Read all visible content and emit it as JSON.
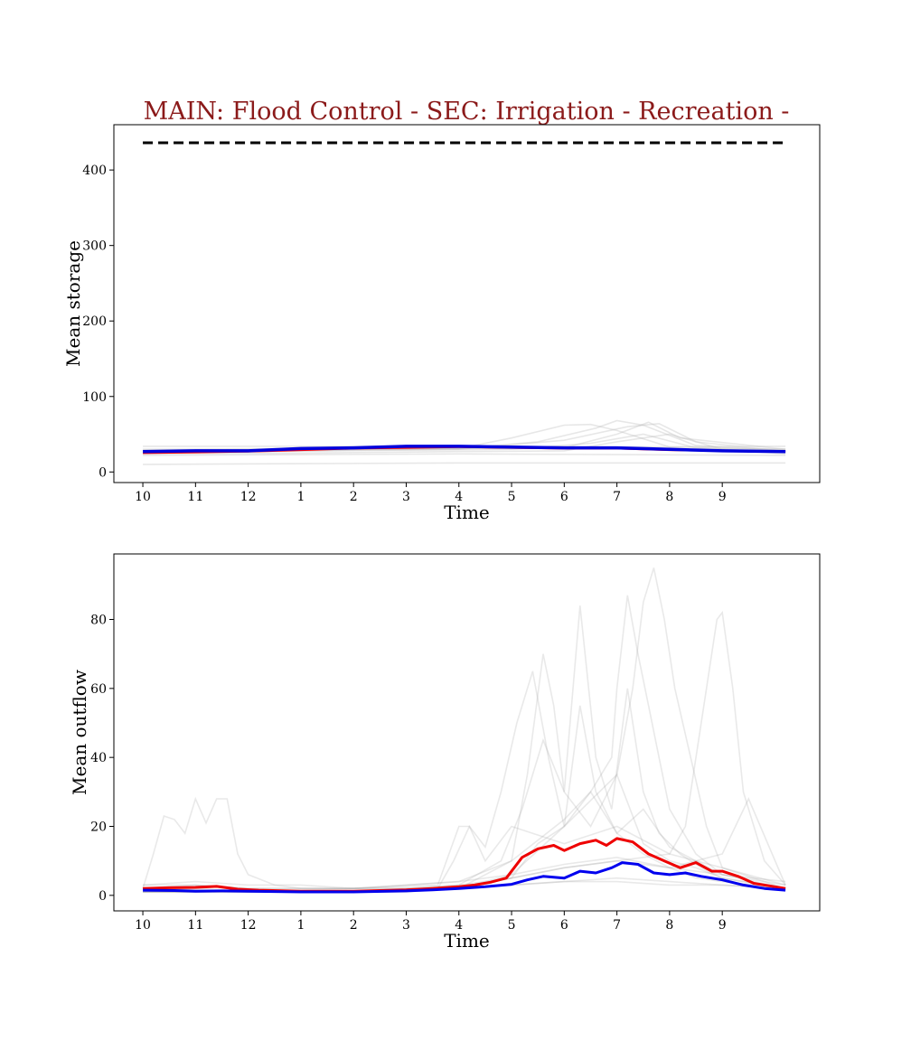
{
  "title": "MAIN: Flood Control - SEC: Irrigation - Recreation -",
  "title_color": "#8b1a1a",
  "chart_data": [
    {
      "type": "line",
      "xlabel": "Time",
      "ylabel": "Mean storage",
      "x_ticks": [
        {
          "label": "10",
          "x": 0
        },
        {
          "label": "11",
          "x": 1
        },
        {
          "label": "12",
          "x": 2
        },
        {
          "label": "1",
          "x": 3
        },
        {
          "label": "2",
          "x": 4
        },
        {
          "label": "3",
          "x": 5
        },
        {
          "label": "4",
          "x": 6
        },
        {
          "label": "5",
          "x": 7
        },
        {
          "label": "6",
          "x": 8
        },
        {
          "label": "7",
          "x": 9
        },
        {
          "label": "8",
          "x": 10
        },
        {
          "label": "9",
          "x": 11
        }
      ],
      "xlim": [
        -0.55,
        12.85
      ],
      "ylim": [
        -14,
        460
      ],
      "y_ticks": [
        0,
        100,
        200,
        300,
        400
      ],
      "grid": false,
      "capacity_line": {
        "y": 436,
        "color": "#000000",
        "style": "dashed"
      },
      "series": [
        {
          "color": "#ff0000",
          "width": 2,
          "x": [
            0,
            1,
            2,
            3,
            4,
            5,
            6,
            7,
            8,
            9,
            10,
            11,
            12.2
          ],
          "y": [
            25,
            26,
            27,
            29,
            31,
            32,
            33,
            32,
            31,
            31,
            29,
            28,
            27
          ]
        },
        {
          "color": "#0000dd",
          "width": 3.5,
          "x": [
            0,
            1,
            2,
            3,
            4,
            5,
            6,
            7,
            8,
            9,
            10,
            11,
            12.2
          ],
          "y": [
            27,
            28,
            28,
            31,
            32,
            34,
            34,
            33,
            32,
            32,
            30,
            28,
            27
          ]
        }
      ],
      "ensemble": {
        "color": "#bbbbbb",
        "opacity": 0.35,
        "traces": [
          {
            "x": [
              0,
              3,
              6,
              9,
              12.2
            ],
            "y": [
              10,
              11,
              12,
              12,
              12
            ]
          },
          {
            "x": [
              0,
              3,
              6,
              9,
              12.2
            ],
            "y": [
              34,
              34,
              34,
              33,
              34
            ]
          },
          {
            "x": [
              0,
              3,
              6,
              9,
              12.2
            ],
            "y": [
              22,
              23,
              24,
              23,
              22
            ]
          },
          {
            "x": [
              0,
              3,
              6,
              9,
              12.2
            ],
            "y": [
              30,
              31,
              32,
              31,
              30
            ]
          },
          {
            "x": [
              0,
              2,
              4,
              6,
              7,
              8,
              8.5,
              9,
              10,
              12.2
            ],
            "y": [
              28,
              29,
              30,
              31,
              45,
              62,
              63,
              55,
              33,
              30
            ]
          },
          {
            "x": [
              0,
              2,
              4,
              6,
              7.5,
              8.6,
              9,
              9.5,
              10.5,
              12.2
            ],
            "y": [
              27,
              28,
              30,
              31,
              40,
              58,
              68,
              62,
              35,
              28
            ]
          },
          {
            "x": [
              0,
              2,
              4,
              6,
              8,
              9.2,
              9.8,
              10.5,
              12.2
            ],
            "y": [
              26,
              27,
              29,
              30,
              42,
              60,
              64,
              40,
              27
            ]
          },
          {
            "x": [
              0,
              2,
              5,
              7,
              8.5,
              9.5,
              10.5,
              12.2
            ],
            "y": [
              25,
              27,
              29,
              30,
              38,
              50,
              32,
              26
            ]
          },
          {
            "x": [
              0,
              3,
              6,
              8,
              9,
              9.6,
              10.2,
              12.2
            ],
            "y": [
              29,
              30,
              31,
              32,
              50,
              66,
              45,
              30
            ]
          },
          {
            "x": [
              0,
              3,
              6,
              8,
              9,
              10,
              11,
              12.2
            ],
            "y": [
              24,
              25,
              27,
              28,
              40,
              50,
              30,
              24
            ]
          }
        ]
      }
    },
    {
      "type": "line",
      "xlabel": "Time",
      "ylabel": "Mean outflow",
      "x_ticks": [
        {
          "label": "10",
          "x": 0
        },
        {
          "label": "11",
          "x": 1
        },
        {
          "label": "12",
          "x": 2
        },
        {
          "label": "1",
          "x": 3
        },
        {
          "label": "2",
          "x": 4
        },
        {
          "label": "3",
          "x": 5
        },
        {
          "label": "4",
          "x": 6
        },
        {
          "label": "5",
          "x": 7
        },
        {
          "label": "6",
          "x": 8
        },
        {
          "label": "7",
          "x": 9
        },
        {
          "label": "8",
          "x": 10
        },
        {
          "label": "9",
          "x": 11
        }
      ],
      "xlim": [
        -0.55,
        12.85
      ],
      "ylim": [
        -4.5,
        99
      ],
      "y_ticks": [
        0,
        20,
        40,
        60,
        80
      ],
      "grid": false,
      "series": [
        {
          "color": "#ee0000",
          "width": 3,
          "x": [
            0,
            0.5,
            1,
            1.4,
            1.8,
            2.2,
            3,
            4,
            5,
            5.5,
            6,
            6.3,
            6.6,
            6.9,
            7.2,
            7.5,
            7.8,
            8,
            8.3,
            8.6,
            8.8,
            9,
            9.3,
            9.6,
            9.9,
            10.2,
            10.5,
            10.8,
            11,
            11.3,
            11.6,
            12,
            12.2
          ],
          "y": [
            2,
            2.2,
            2.3,
            2.6,
            1.8,
            1.5,
            1.2,
            1.2,
            1.6,
            2,
            2.5,
            3,
            3.8,
            5,
            11,
            13.5,
            14.5,
            13,
            15,
            16,
            14.5,
            16.5,
            15.5,
            12,
            10,
            8,
            9.5,
            7,
            7,
            5.5,
            3.5,
            2.5,
            2
          ]
        },
        {
          "color": "#0000ee",
          "width": 3,
          "x": [
            0,
            0.6,
            1,
            1.5,
            2,
            3,
            4,
            5,
            5.5,
            6,
            6.5,
            7,
            7.3,
            7.6,
            8,
            8.3,
            8.6,
            8.9,
            9.1,
            9.4,
            9.7,
            10,
            10.3,
            10.6,
            11,
            11.4,
            11.8,
            12.2
          ],
          "y": [
            1.5,
            1.4,
            1.2,
            1.3,
            1.2,
            1,
            1,
            1.3,
            1.6,
            2,
            2.5,
            3.2,
            4.5,
            5.5,
            5,
            7,
            6.5,
            8,
            9.5,
            9,
            6.5,
            6,
            6.5,
            5.5,
            4.5,
            3,
            2,
            1.5
          ]
        }
      ],
      "ensemble": {
        "color": "#999999",
        "opacity": 0.22,
        "traces": [
          {
            "x": [
              0,
              0.2,
              0.4,
              0.6,
              0.8,
              1,
              1.2,
              1.4,
              1.6,
              1.8,
              2,
              2.5,
              3,
              4,
              5,
              6,
              7,
              8,
              9,
              10,
              11,
              12.2
            ],
            "y": [
              2,
              12,
              23,
              22,
              18,
              28,
              21,
              28,
              28,
              12,
              6,
              3,
              2,
              2,
              2,
              2,
              3,
              4,
              4,
              3,
              3,
              2
            ]
          },
          {
            "x": [
              0,
              1,
              2,
              3,
              4,
              5,
              5.6,
              5.9,
              6.2,
              6.5,
              6.8,
              7.1,
              7.4,
              7.7,
              8,
              8.3,
              8.6,
              9,
              9.5,
              10,
              10.5,
              11,
              12.2
            ],
            "y": [
              1,
              1,
              1,
              1,
              1,
              1,
              2,
              10,
              20,
              14,
              30,
              50,
              65,
              40,
              20,
              55,
              30,
              18,
              12,
              8,
              5,
              4,
              2
            ]
          },
          {
            "x": [
              0,
              2,
              4,
              6,
              7,
              7.3,
              7.6,
              7.8,
              8,
              8.3,
              8.6,
              8.9,
              9.2,
              9.5,
              9.8,
              10.2,
              10.6,
              11,
              12.2
            ],
            "y": [
              1,
              1,
              1,
              2,
              10,
              35,
              70,
              55,
              30,
              84,
              40,
              25,
              60,
              30,
              18,
              12,
              8,
              5,
              2
            ]
          },
          {
            "x": [
              0,
              2,
              4,
              6,
              7,
              7.5,
              8,
              8.5,
              8.9,
              9,
              9.2,
              9.4,
              9.6,
              9.8,
              10,
              10.5,
              11,
              12.2
            ],
            "y": [
              2,
              1,
              1,
              2,
              5,
              15,
              20,
              30,
              40,
              60,
              87,
              70,
              55,
              40,
              25,
              12,
              6,
              2
            ]
          },
          {
            "x": [
              0,
              2,
              4,
              6,
              7,
              8,
              9,
              9.3,
              9.5,
              9.7,
              9.9,
              10.1,
              10.4,
              10.7,
              11,
              12.2
            ],
            "y": [
              1,
              1,
              1,
              2,
              6,
              20,
              35,
              60,
              85,
              95,
              80,
              60,
              40,
              20,
              8,
              2
            ]
          },
          {
            "x": [
              0,
              2,
              4,
              6,
              8,
              9,
              10,
              10.3,
              10.6,
              10.9,
              11,
              11.2,
              11.4,
              11.8,
              12.2
            ],
            "y": [
              1,
              1,
              1,
              2,
              8,
              10,
              12,
              20,
              50,
              80,
              82,
              60,
              30,
              10,
              3
            ]
          },
          {
            "x": [
              0,
              2,
              4,
              5.6,
              6,
              6.2,
              6.5,
              7,
              8,
              9,
              10,
              11,
              12.2
            ],
            "y": [
              2,
              1,
              2,
              3,
              20,
              20,
              10,
              20,
              15,
              20,
              12,
              8,
              3
            ]
          },
          {
            "x": [
              0,
              1,
              2,
              3,
              4,
              5,
              6,
              7,
              8,
              8.5,
              9,
              9.5,
              10,
              10.5,
              11,
              12.2
            ],
            "y": [
              3,
              3,
              2,
              2,
              2,
              3,
              4,
              10,
              22,
              30,
              18,
              25,
              14,
              10,
              6,
              3
            ]
          },
          {
            "x": [
              0,
              1,
              2,
              3,
              4,
              5,
              6,
              6.8,
              7.2,
              7.6,
              8,
              8.5,
              9,
              9.5,
              10,
              10.5,
              11,
              12.2
            ],
            "y": [
              1,
              2,
              1,
              1,
              1,
              2,
              3,
              10,
              25,
              45,
              30,
              20,
              35,
              15,
              10,
              8,
              5,
              2
            ]
          },
          {
            "x": [
              0,
              1,
              2,
              3,
              4,
              5,
              6,
              7,
              8,
              9,
              10,
              11,
              11.5,
              12.2
            ],
            "y": [
              2,
              3,
              2,
              2,
              2,
              2,
              3,
              5,
              8,
              10,
              8,
              12,
              28,
              3
            ]
          },
          {
            "x": [
              0,
              1,
              2,
              3,
              4,
              5,
              6,
              7,
              8,
              9,
              10,
              11,
              12.2
            ],
            "y": [
              3,
              4,
              3,
              3,
              2,
              3,
              4,
              6,
              9,
              11,
              8,
              6,
              4
            ]
          },
          {
            "x": [
              0,
              1,
              2,
              3,
              4,
              5,
              6,
              7,
              8,
              9,
              10,
              11,
              12.2
            ],
            "y": [
              1,
              1,
              1,
              1,
              1,
              1,
              2,
              3,
              4,
              5,
              4,
              3,
              2
            ]
          }
        ]
      }
    }
  ]
}
